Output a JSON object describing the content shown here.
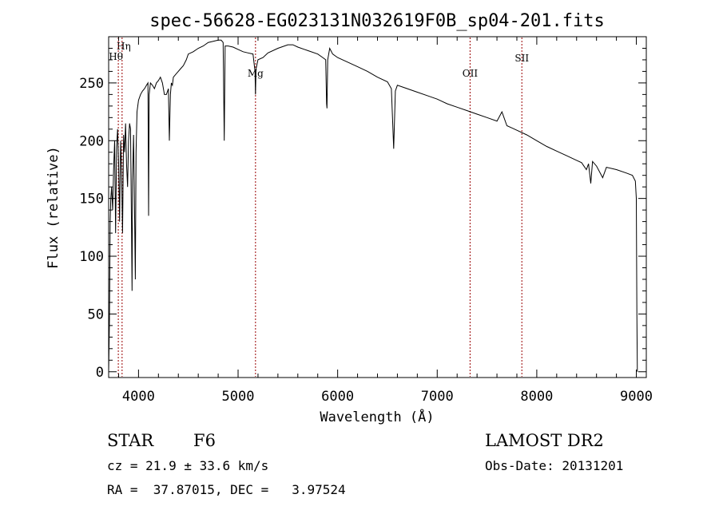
{
  "chart_data": {
    "type": "line",
    "title": "spec-56628-EG023131N032619F0B_sp04-201.fits",
    "xlabel": "Wavelength (Å)",
    "ylabel": "Flux (relative)",
    "xlim": [
      3700,
      9100
    ],
    "ylim": [
      -5,
      290
    ],
    "xticks": [
      4000,
      5000,
      6000,
      7000,
      8000,
      9000
    ],
    "yticks": [
      0,
      50,
      100,
      150,
      200,
      250
    ],
    "grid": false,
    "line_color": "#000000",
    "marker_color": "#990000",
    "lines": [
      {
        "label": "Hη",
        "wavelength": 3835
      },
      {
        "label": "Hθ",
        "wavelength": 3797
      },
      {
        "label": "Mg",
        "wavelength": 5175
      },
      {
        "label": "OII",
        "wavelength": 7330
      },
      {
        "label": "SII",
        "wavelength": 7850
      }
    ],
    "series": [
      {
        "x": [
          3700,
          3708,
          3715,
          3722,
          3730,
          3740,
          3750,
          3760,
          3770,
          3780,
          3790,
          3800,
          3810,
          3820,
          3830,
          3840,
          3850,
          3860,
          3870,
          3880,
          3890,
          3900,
          3910,
          3920,
          3930,
          3935,
          3940,
          3950,
          3960,
          3968,
          3975,
          3985,
          4000,
          4020,
          4040,
          4060,
          4080,
          4095,
          4101,
          4107,
          4120,
          4140,
          4160,
          4180,
          4200,
          4220,
          4240,
          4260,
          4280,
          4300,
          4310,
          4320,
          4330,
          4340,
          4350,
          4380,
          4400,
          4420,
          4450,
          4480,
          4500,
          4550,
          4600,
          4650,
          4700,
          4750,
          4800,
          4830,
          4850,
          4861,
          4870,
          4900,
          4950,
          5000,
          5050,
          5100,
          5150,
          5170,
          5175,
          5180,
          5200,
          5250,
          5300,
          5400,
          5500,
          5550,
          5600,
          5700,
          5800,
          5850,
          5880,
          5889,
          5893,
          5900,
          5920,
          5950,
          6000,
          6100,
          6200,
          6300,
          6400,
          6500,
          6540,
          6563,
          6580,
          6600,
          6700,
          6800,
          6900,
          7000,
          7100,
          7200,
          7300,
          7400,
          7500,
          7600,
          7650,
          7700,
          7750,
          7800,
          7900,
          8000,
          8100,
          8200,
          8300,
          8400,
          8450,
          8498,
          8520,
          8542,
          8560,
          8600,
          8662,
          8700,
          8800,
          8900,
          8960,
          8990,
          9000,
          9005,
          9010
        ],
        "y": [
          0,
          45,
          130,
          150,
          160,
          140,
          175,
          200,
          120,
          195,
          210,
          180,
          130,
          200,
          175,
          120,
          205,
          190,
          215,
          180,
          160,
          200,
          215,
          210,
          120,
          70,
          165,
          205,
          140,
          80,
          190,
          225,
          235,
          240,
          243,
          245,
          248,
          250,
          135,
          240,
          250,
          248,
          245,
          250,
          252,
          255,
          250,
          240,
          240,
          245,
          200,
          240,
          250,
          248,
          255,
          258,
          260,
          262,
          265,
          270,
          275,
          277,
          280,
          282,
          285,
          286,
          287,
          287,
          285,
          200,
          282,
          282,
          281,
          279,
          277,
          276,
          275,
          260,
          240,
          262,
          270,
          272,
          276,
          280,
          283,
          283,
          281,
          278,
          275,
          272,
          270,
          232,
          228,
          270,
          280,
          275,
          272,
          268,
          264,
          260,
          255,
          251,
          245,
          193,
          243,
          248,
          245,
          242,
          239,
          236,
          232,
          229,
          226,
          223,
          220,
          217,
          225,
          213,
          211,
          209,
          205,
          200,
          195,
          191,
          187,
          183,
          181,
          175,
          180,
          163,
          182,
          178,
          168,
          177,
          175,
          172,
          170,
          165,
          150,
          50,
          0
        ]
      }
    ]
  },
  "info": {
    "class_label": "STAR",
    "subclass": "F6",
    "survey": "LAMOST DR2",
    "cz": "cz = 21.9 ± 33.6 km/s",
    "obs_date": "Obs-Date: 20131201",
    "coords": "RA =  37.87015, DEC =   3.97524"
  }
}
